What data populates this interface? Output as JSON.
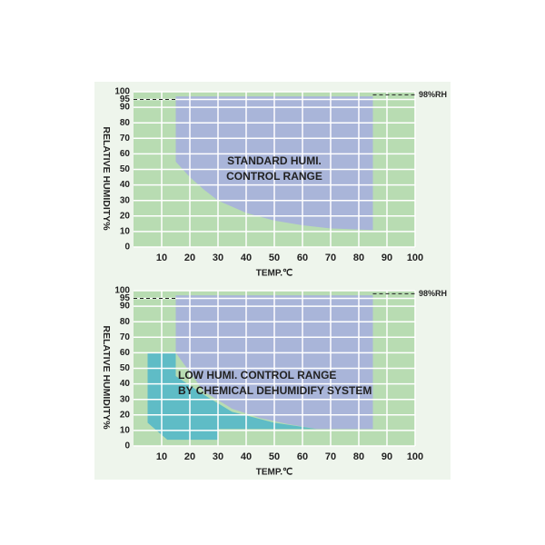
{
  "chart_data": [
    {
      "type": "region",
      "xlabel": "TEMP.℃",
      "ylabel": "RELATIVE HUMIDITY%",
      "xlim": [
        0,
        100
      ],
      "ylim": [
        0,
        100
      ],
      "xticks": [
        10,
        20,
        30,
        40,
        50,
        60,
        70,
        80,
        90,
        100
      ],
      "yticks": [
        0,
        10,
        20,
        30,
        40,
        50,
        60,
        70,
        80,
        90,
        95,
        100
      ],
      "grid": true,
      "background": "#b8dcb2",
      "regions": [
        {
          "label": [
            "STANDARD HUMI.",
            "CONTROL RANGE"
          ],
          "color": "#a9b5d9",
          "x": [
            15,
            15,
            20,
            25,
            30,
            40,
            50,
            60,
            70,
            85,
            85
          ],
          "y": [
            97,
            55,
            45,
            37,
            30,
            22,
            17,
            14,
            12,
            11,
            97
          ]
        }
      ],
      "ref_lines": [
        {
          "y": 95,
          "x": [
            0,
            15
          ]
        },
        {
          "y": 98,
          "x": [
            85,
            100
          ],
          "label": "98%RH"
        }
      ]
    },
    {
      "type": "region",
      "xlabel": "TEMP.℃",
      "ylabel": "RELATIVE HUMIDITY%",
      "xlim": [
        0,
        100
      ],
      "ylim": [
        0,
        100
      ],
      "xticks": [
        10,
        20,
        30,
        40,
        50,
        60,
        70,
        80,
        90,
        100
      ],
      "yticks": [
        0,
        10,
        20,
        30,
        40,
        50,
        60,
        70,
        80,
        90,
        95,
        100
      ],
      "grid": true,
      "background": "#b8dcb2",
      "regions": [
        {
          "color": "#a9b5d9",
          "x": [
            15,
            15,
            25,
            35,
            45,
            55,
            65,
            85,
            85
          ],
          "y": [
            97,
            60,
            35,
            24,
            18,
            14,
            11,
            11,
            97
          ]
        },
        {
          "label": [
            "LOW HUMI. CONTROL RANGE",
            "BY CHEMICAL DEHUMIDIFY SYSTEM"
          ],
          "color": "#5fbcc6",
          "x": [
            5,
            15,
            15,
            25,
            35,
            50,
            65,
            30,
            30,
            12,
            5
          ],
          "y": [
            60,
            60,
            45,
            33,
            22,
            15,
            11,
            11,
            4,
            4,
            15
          ]
        }
      ],
      "ref_lines": [
        {
          "y": 95,
          "x": [
            0,
            15
          ]
        },
        {
          "y": 98,
          "x": [
            85,
            100
          ],
          "label": "98%RH"
        }
      ]
    }
  ]
}
